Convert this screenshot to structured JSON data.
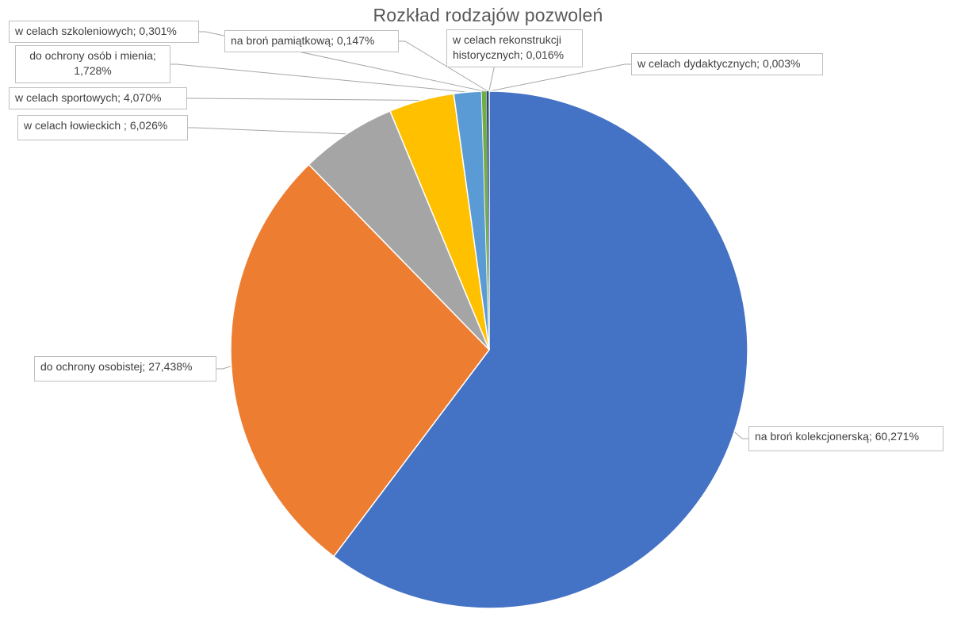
{
  "chart_data": {
    "type": "pie",
    "title": "Rozkład rodzajów pozwoleń",
    "slices": [
      {
        "name": "na broń kolekcjonerską",
        "value": 60.271,
        "label_text": "na broń kolekcjonerską; 60,271%",
        "color": "#4472C4"
      },
      {
        "name": "do ochrony osobistej",
        "value": 27.438,
        "label_text": "do ochrony osobistej; 27,438%",
        "color": "#ED7D31"
      },
      {
        "name": "w celach łowieckich",
        "value": 6.026,
        "label_text": "w celach łowieckich ; 6,026%",
        "color": "#A5A5A5"
      },
      {
        "name": "w celach sportowych",
        "value": 4.07,
        "label_text": "w celach sportowych; 4,070%",
        "color": "#FFC000"
      },
      {
        "name": "do ochrony osób i mienia",
        "value": 1.728,
        "label_text": "do ochrony osób i mienia;\n1,728%",
        "color": "#5B9BD5"
      },
      {
        "name": "w celach szkoleniowych",
        "value": 0.301,
        "label_text": "w celach szkoleniowych; 0,301%",
        "color": "#70AD47"
      },
      {
        "name": "na broń pamiątkową",
        "value": 0.147,
        "label_text": "na broń pamiątkową; 0,147%",
        "color": "#264478"
      },
      {
        "name": "w celach rekonstrukcji historycznych",
        "value": 0.016,
        "label_text": "w celach rekonstrukcji\nhistorycznych; 0,016%",
        "color": "#9E480E"
      },
      {
        "name": "w celach dydaktycznych",
        "value": 0.003,
        "label_text": "w celach dydaktycznych; 0,003%",
        "color": "#636363"
      }
    ]
  }
}
